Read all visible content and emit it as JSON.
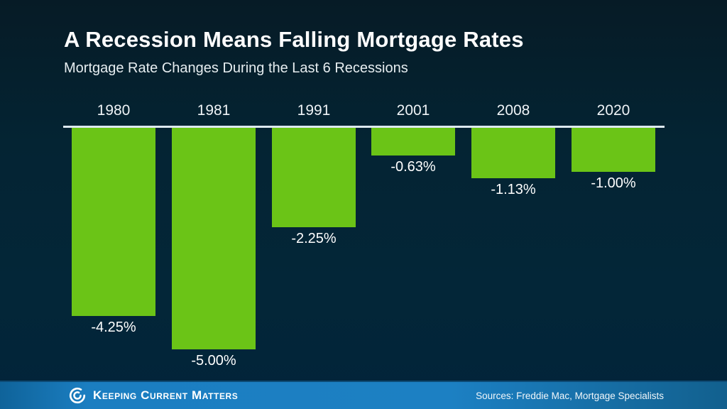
{
  "header": {
    "title": "A Recession Means Falling Mortgage Rates",
    "subtitle": "Mortgage Rate Changes During the Last 6 Recessions"
  },
  "chart_data": {
    "type": "bar",
    "title": "A Recession Means Falling Mortgage Rates",
    "subtitle": "Mortgage Rate Changes During the Last 6 Recessions",
    "categories": [
      "1980",
      "1981",
      "1991",
      "2001",
      "2008",
      "2020"
    ],
    "values": [
      -4.25,
      -5.0,
      -2.25,
      -0.63,
      -1.13,
      -1.0
    ],
    "value_labels": [
      "-4.25%",
      "-5.00%",
      "-2.25%",
      "-0.63%",
      "-1.13%",
      "-1.00%"
    ],
    "xlabel": "",
    "ylabel": "",
    "ylim": [
      -5.5,
      0
    ],
    "orientation": "vertical-negative",
    "baseline_position": "top",
    "grid": false,
    "legend": false,
    "bar_color": "#6bc417",
    "axis_line_color": "#dde9ef",
    "label_color": "#ffffff"
  },
  "footer": {
    "brand": "Keeping Current Matters",
    "logo_icon": "spiral-swirl",
    "sources": "Sources: Freddie Mac, Mortgage Specialists",
    "bar_color": "#1b7ec1"
  },
  "colors": {
    "background_top": "#061b26",
    "background_bottom": "#02243a",
    "text": "#ffffff"
  }
}
